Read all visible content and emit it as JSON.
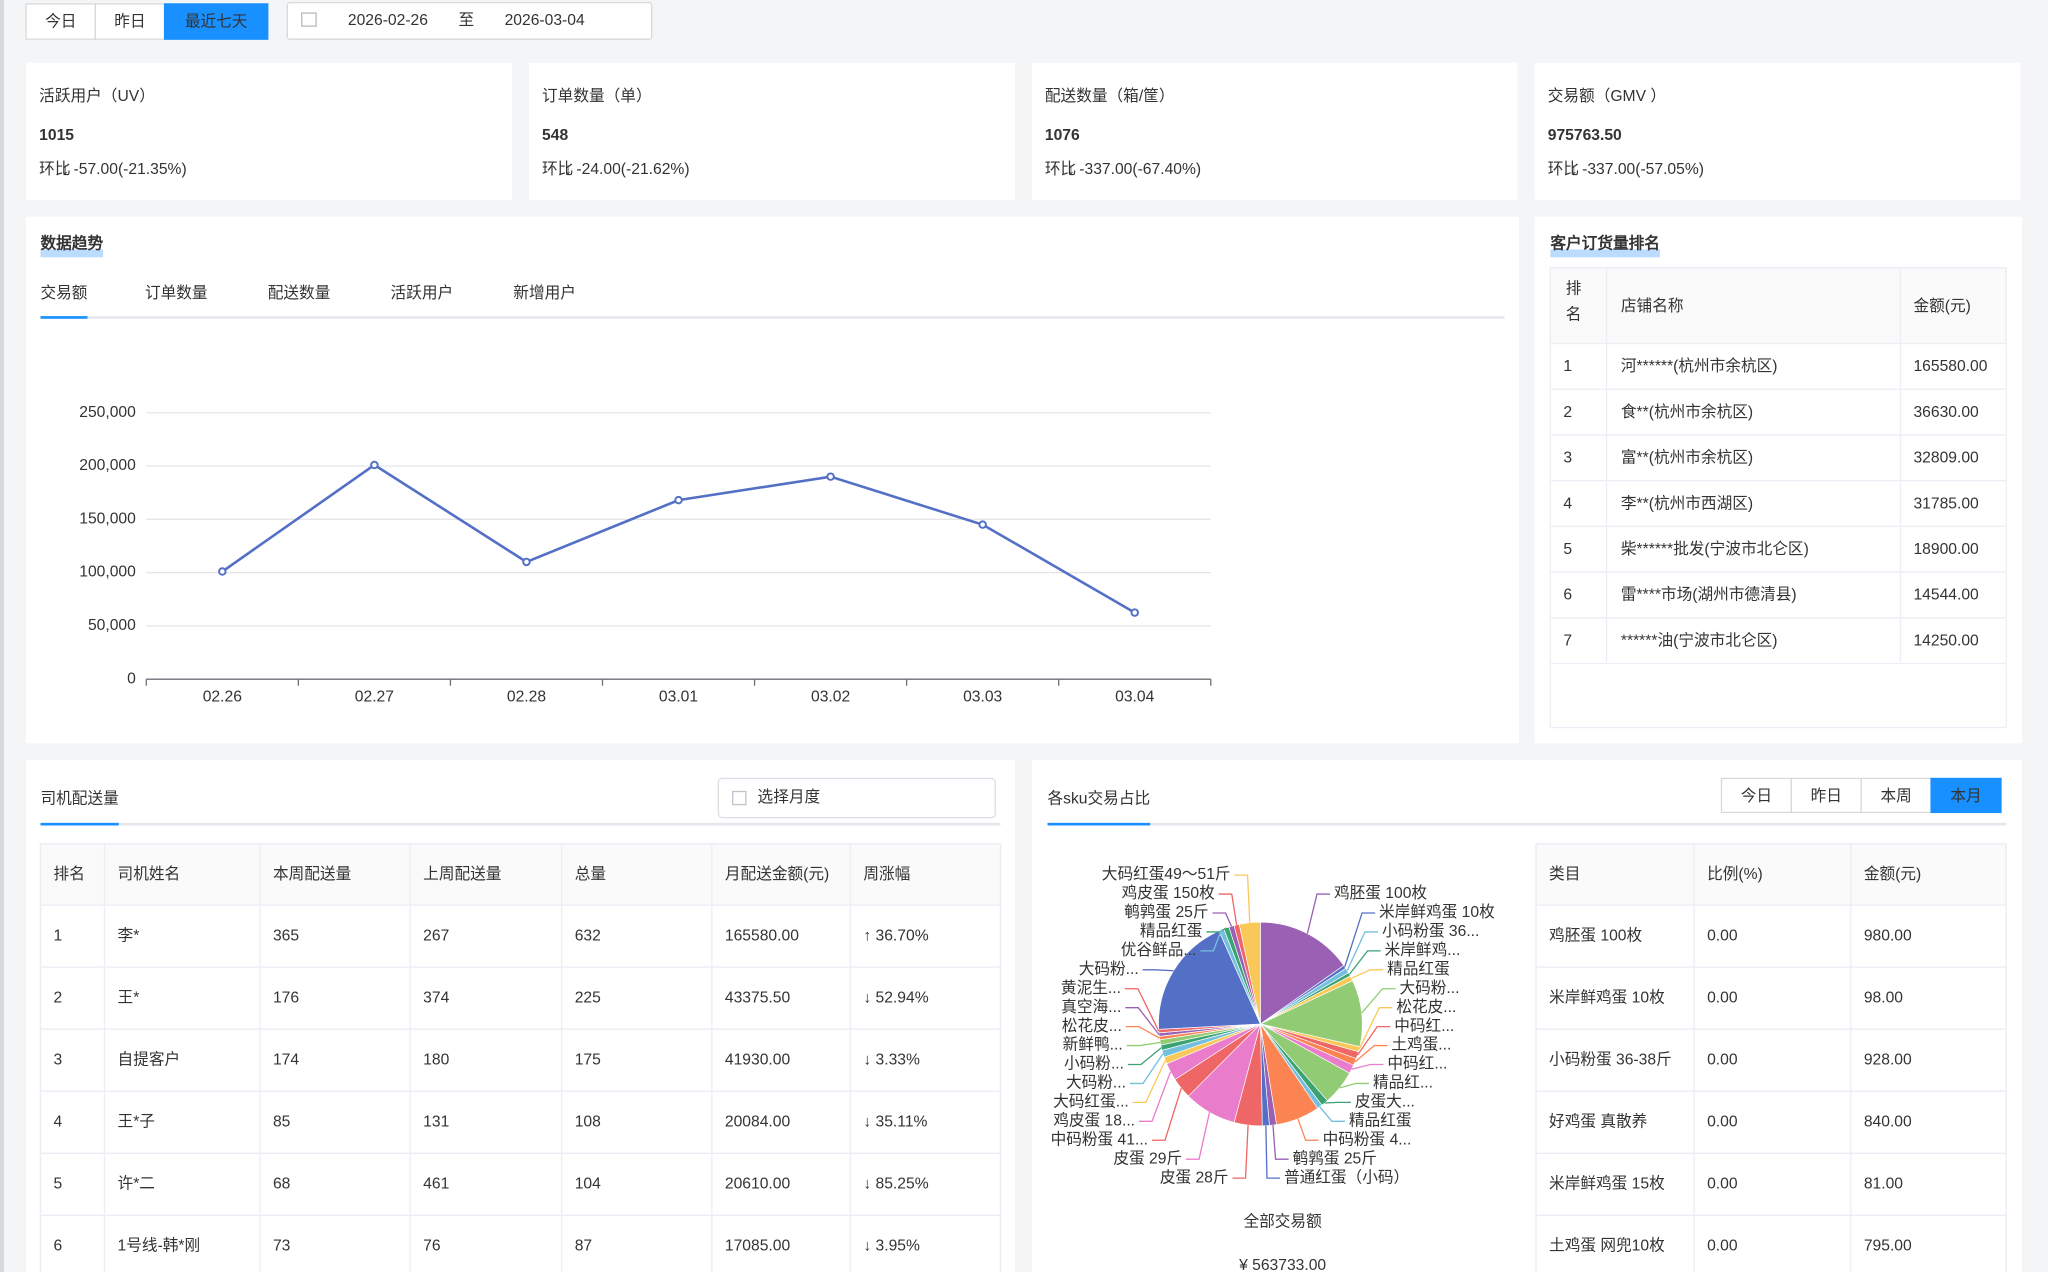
{
  "toolbar": {
    "quick_ranges": [
      "今日",
      "昨日",
      "最近七天"
    ],
    "active_range": 2,
    "date_start": "2026-02-26",
    "date_separator": "至",
    "date_end": "2026-03-04"
  },
  "stats": [
    {
      "title": "活跃用户（UV）",
      "value": "1015",
      "change_label": "环比",
      "change": "↓ -57.00(-21.35%)"
    },
    {
      "title": "订单数量（单）",
      "value": "548",
      "change_label": "环比",
      "change": "↓ -24.00(-21.62%)"
    },
    {
      "title": "配送数量（箱/筐）",
      "value": "1076",
      "change_label": "环比",
      "change": "↓ -337.00(-67.40%)"
    },
    {
      "title": "交易额（GMV ）",
      "value": "975763.50",
      "change_label": "环比",
      "change": "↓ -337.00(-57.05%)"
    }
  ],
  "trend_panel": {
    "title": "数据趋势",
    "tabs": [
      "交易额",
      "订单数量",
      "配送数量",
      "活跃用户",
      "新增用户"
    ],
    "active_tab": 0
  },
  "chart_data": [
    {
      "type": "line",
      "x": [
        "02.26",
        "02.27",
        "02.28",
        "03.01",
        "03.02",
        "03.03",
        "03.04"
      ],
      "values": [
        101000,
        201000,
        110000,
        168000,
        190000,
        145000,
        62500
      ],
      "color": "#5470c6",
      "ylim": [
        0,
        250000
      ],
      "yticks": [
        0,
        {
          "value": 50000,
          "label": "50,000"
        },
        {
          "value": 100000,
          "label": "100,000"
        },
        {
          "value": 150000,
          "label": "150,000"
        },
        {
          "value": 200000,
          "label": "200,000"
        },
        {
          "value": 250000,
          "label": "250,000"
        }
      ],
      "grid": true
    },
    {
      "type": "pie",
      "title": "各sku交易占比",
      "categories": [
        "鸡胚蛋 100枚",
        "米岸鲜鸡蛋 10枚",
        "小码粉蛋 36...",
        "米岸鲜鸡...",
        "精品红蛋",
        "大码粉...",
        "松花皮...",
        "中码红...",
        "土鸡蛋...",
        "中码红...",
        "精品红...",
        "皮蛋大...",
        "精品红蛋",
        "中码粉蛋 4...",
        "鹌鹑蛋 25斤",
        "普通红蛋（小码）",
        "皮蛋 28斤",
        "皮蛋 29斤",
        "中码粉蛋 41...",
        "鸡皮蛋 18...",
        "大码红蛋...",
        "大码粉...",
        "小码粉...",
        "新鲜鸭...",
        "松花皮...",
        "真空海...",
        "黄泥生...",
        "大码粉...",
        "优谷鲜品...",
        "精品红蛋",
        "鹌鹑蛋 25斤",
        "鸡皮蛋 150枚",
        "大码红蛋49～51斤"
      ],
      "values": [
        86000,
        3100,
        4700,
        3100,
        4700,
        59500,
        4700,
        6300,
        6300,
        7800,
        31300,
        6300,
        4700,
        39200,
        6300,
        6300,
        25100,
        47000,
        18800,
        15700,
        6300,
        6300,
        4700,
        4700,
        3100,
        3100,
        3100,
        108100,
        4700,
        4700,
        4700,
        4700,
        18800
      ],
      "colors": [
        "#9a60b4",
        "#5470c6",
        "#73c0de",
        "#3ba272",
        "#fac858",
        "#91cc75",
        "#fac858",
        "#ee6666",
        "#fc8452",
        "#ea7ccc",
        "#91cc75",
        "#3ba272",
        "#73c0de",
        "#fc8452",
        "#9a60b4",
        "#5470c6",
        "#ee6666",
        "#ea7ccc",
        "#ee6666",
        "#ea7ccc",
        "#fac858",
        "#73c0de",
        "#3ba272",
        "#91cc75",
        "#fc8452",
        "#9a60b4",
        "#ee6666",
        "#5470c6",
        "#73c0de",
        "#3ba272",
        "#9a60b4",
        "#ee6666",
        "#fac858"
      ],
      "total_label": "全部交易额",
      "total": "¥ 563733.00"
    }
  ],
  "ranking": {
    "title": "客户订货量排名",
    "columns": [
      "排名",
      "店铺名称",
      "金额(元)"
    ],
    "rows": [
      [
        "1",
        "河******(杭州市余杭区)",
        "165580.00"
      ],
      [
        "2",
        "食**(杭州市余杭区)",
        "36630.00"
      ],
      [
        "3",
        "富**(杭州市余杭区)",
        "32809.00"
      ],
      [
        "4",
        "李**(杭州市西湖区)",
        "31785.00"
      ],
      [
        "5",
        "柴******批发(宁波市北仑区)",
        "18900.00"
      ],
      [
        "6",
        "雷****市场(湖州市德清县)",
        "14544.00"
      ],
      [
        "7",
        "******油(宁波市北仑区)",
        "14250.00"
      ]
    ]
  },
  "drivers": {
    "title": "司机配送量",
    "month_placeholder": "选择月度",
    "columns": [
      "排名",
      "司机姓名",
      "本周配送量",
      "上周配送量",
      "总量",
      "月配送金额(元)",
      "周涨幅"
    ],
    "rows": [
      [
        "1",
        "李*",
        "365",
        "267",
        "632",
        "165580.00",
        "↑ 36.70%"
      ],
      [
        "2",
        "王*",
        "176",
        "374",
        "225",
        "43375.50",
        "↓ 52.94%"
      ],
      [
        "3",
        "自提客户",
        "174",
        "180",
        "175",
        "41930.00",
        "↓ 3.33%"
      ],
      [
        "4",
        "王*子",
        "85",
        "131",
        "108",
        "20084.00",
        "↓ 35.11%"
      ],
      [
        "5",
        "许*二",
        "68",
        "461",
        "104",
        "20610.00",
        "↓ 85.25%"
      ],
      [
        "6",
        "1号线-韩*刚",
        "73",
        "76",
        "87",
        "17085.00",
        "↓ 3.95%"
      ]
    ]
  },
  "sku_panel": {
    "ranges": [
      "今日",
      "昨日",
      "本周",
      "本月"
    ],
    "active_range": 3,
    "columns": [
      "类目",
      "比例(%)",
      "金额(元)"
    ],
    "rows": [
      [
        "鸡胚蛋 100枚",
        "0.00",
        "980.00"
      ],
      [
        "米岸鲜鸡蛋 10枚",
        "0.00",
        "98.00"
      ],
      [
        "小码粉蛋 36-38斤",
        "0.00",
        "928.00"
      ],
      [
        "好鸡蛋 真散养",
        "0.00",
        "840.00"
      ],
      [
        "米岸鲜鸡蛋 15枚",
        "0.00",
        "81.00"
      ],
      [
        "土鸡蛋 网兜10枚",
        "0.00",
        "795.00"
      ]
    ]
  }
}
